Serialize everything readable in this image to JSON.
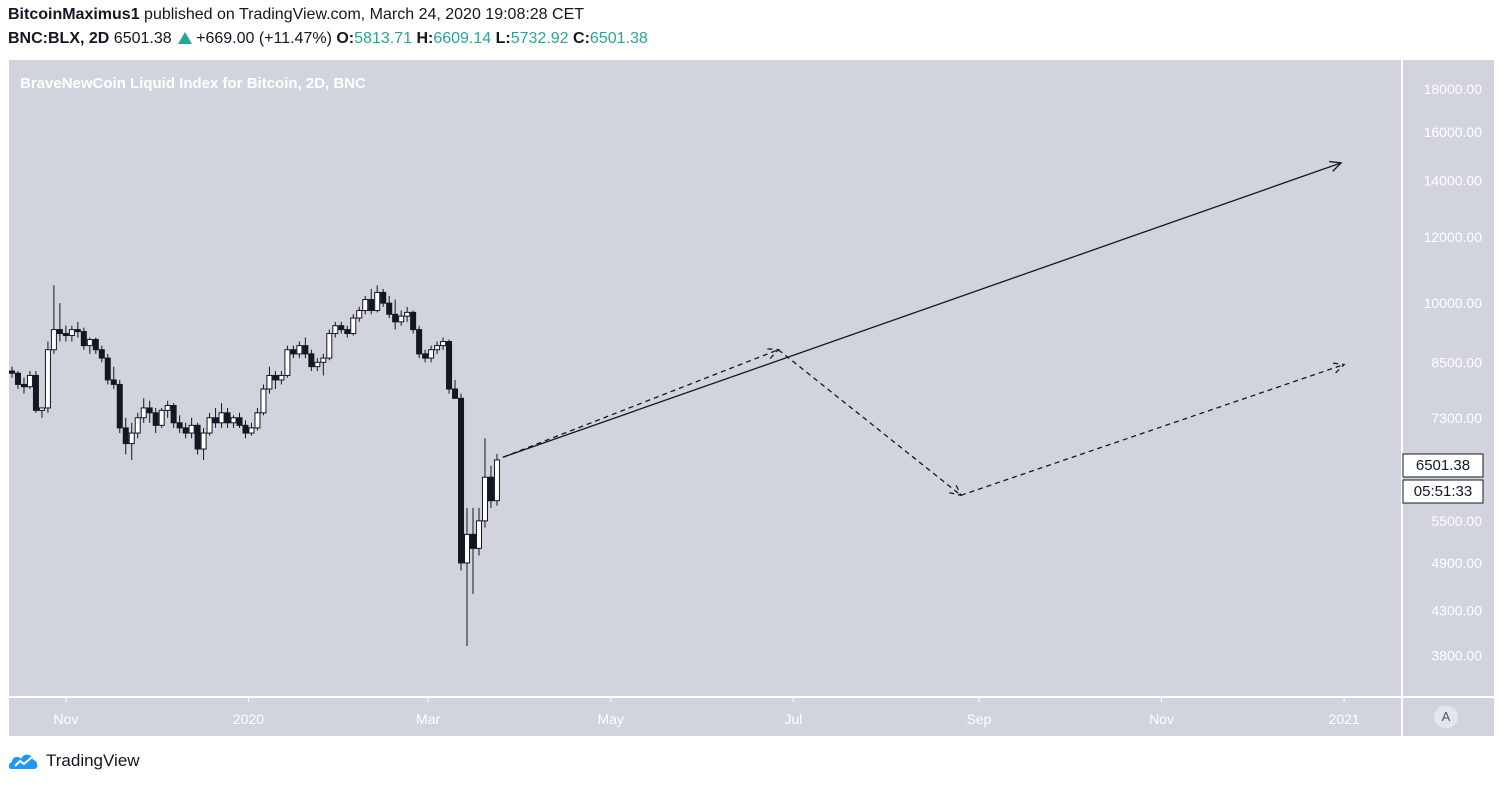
{
  "header": {
    "author": "BitcoinMaximus1",
    "published": "published on TradingView.com, March 24, 2020 19:08:28 CET",
    "symbol": "BNC:BLX, 2D",
    "last": "6501.38",
    "change": "+669.00 (+11.47%)",
    "o_label": "O:",
    "o_value": "5813.71",
    "h_label": "H:",
    "h_value": "6609.14",
    "l_label": "L:",
    "l_value": "5732.92",
    "c_label": "C:",
    "c_value": "6501.38"
  },
  "chart_data": {
    "type": "candlestick",
    "title": "BraveNewCoin Liquid Index for Bitcoin, 2D, BNC",
    "xlabel": "",
    "ylabel": "",
    "y_scale": "log",
    "ylim": [
      3400,
      19500
    ],
    "y_ticks": [
      "18000.00",
      "16000.00",
      "14000.00",
      "12000.00",
      "10000.00",
      "8500.00",
      "7300.00",
      "5500.00",
      "4900.00",
      "4300.00",
      "3800.00"
    ],
    "x_ticks": [
      "Nov",
      "2020",
      "Mar",
      "May",
      "Jul",
      "Sep",
      "Nov",
      "2021"
    ],
    "x_tick_dates": [
      "2019-11-01",
      "2020-01-01",
      "2020-03-01",
      "2020-05-01",
      "2020-07-01",
      "2020-09-01",
      "2020-11-01",
      "2021-01-01"
    ],
    "xlim": [
      "2019-10-13",
      "2021-01-20"
    ],
    "price_label": "6501.38",
    "countdown_label": "05:51:33",
    "candles": [
      {
        "date": "2019-10-14",
        "o": 8300,
        "h": 8400,
        "l": 8150,
        "c": 8250
      },
      {
        "date": "2019-10-16",
        "o": 8250,
        "h": 8300,
        "l": 7900,
        "c": 8000
      },
      {
        "date": "2019-10-18",
        "o": 8000,
        "h": 8150,
        "l": 7800,
        "c": 7950
      },
      {
        "date": "2019-10-20",
        "o": 7950,
        "h": 8300,
        "l": 7900,
        "c": 8200
      },
      {
        "date": "2019-10-22",
        "o": 8200,
        "h": 8300,
        "l": 7400,
        "c": 7450
      },
      {
        "date": "2019-10-24",
        "o": 7450,
        "h": 7500,
        "l": 7300,
        "c": 7500
      },
      {
        "date": "2019-10-26",
        "o": 7500,
        "h": 9000,
        "l": 7400,
        "c": 8800
      },
      {
        "date": "2019-10-28",
        "o": 8800,
        "h": 10500,
        "l": 8700,
        "c": 9300
      },
      {
        "date": "2019-10-30",
        "o": 9300,
        "h": 10000,
        "l": 9000,
        "c": 9200
      },
      {
        "date": "2019-11-01",
        "o": 9200,
        "h": 9400,
        "l": 9000,
        "c": 9150
      },
      {
        "date": "2019-11-03",
        "o": 9150,
        "h": 9400,
        "l": 9000,
        "c": 9300
      },
      {
        "date": "2019-11-05",
        "o": 9300,
        "h": 9500,
        "l": 9100,
        "c": 9250
      },
      {
        "date": "2019-11-07",
        "o": 9250,
        "h": 9350,
        "l": 8800,
        "c": 8900
      },
      {
        "date": "2019-11-09",
        "o": 8900,
        "h": 9100,
        "l": 8700,
        "c": 9050
      },
      {
        "date": "2019-11-11",
        "o": 9050,
        "h": 9100,
        "l": 8700,
        "c": 8800
      },
      {
        "date": "2019-11-13",
        "o": 8800,
        "h": 8900,
        "l": 8500,
        "c": 8600
      },
      {
        "date": "2019-11-15",
        "o": 8600,
        "h": 8700,
        "l": 8000,
        "c": 8100
      },
      {
        "date": "2019-11-17",
        "o": 8100,
        "h": 8400,
        "l": 7900,
        "c": 8000
      },
      {
        "date": "2019-11-19",
        "o": 8000,
        "h": 8100,
        "l": 7000,
        "c": 7100
      },
      {
        "date": "2019-11-21",
        "o": 7100,
        "h": 7300,
        "l": 6600,
        "c": 6800
      },
      {
        "date": "2019-11-23",
        "o": 6800,
        "h": 7200,
        "l": 6500,
        "c": 7000
      },
      {
        "date": "2019-11-25",
        "o": 7000,
        "h": 7400,
        "l": 6900,
        "c": 7300
      },
      {
        "date": "2019-11-27",
        "o": 7300,
        "h": 7700,
        "l": 7200,
        "c": 7500
      },
      {
        "date": "2019-11-29",
        "o": 7500,
        "h": 7650,
        "l": 7200,
        "c": 7400
      },
      {
        "date": "2019-12-01",
        "o": 7400,
        "h": 7500,
        "l": 7000,
        "c": 7150
      },
      {
        "date": "2019-12-03",
        "o": 7150,
        "h": 7500,
        "l": 7100,
        "c": 7450
      },
      {
        "date": "2019-12-05",
        "o": 7450,
        "h": 7650,
        "l": 7300,
        "c": 7550
      },
      {
        "date": "2019-12-07",
        "o": 7550,
        "h": 7600,
        "l": 7100,
        "c": 7200
      },
      {
        "date": "2019-12-09",
        "o": 7200,
        "h": 7350,
        "l": 7000,
        "c": 7100
      },
      {
        "date": "2019-12-11",
        "o": 7100,
        "h": 7200,
        "l": 6900,
        "c": 7000
      },
      {
        "date": "2019-12-13",
        "o": 7000,
        "h": 7300,
        "l": 6900,
        "c": 7150
      },
      {
        "date": "2019-12-15",
        "o": 7150,
        "h": 7200,
        "l": 6600,
        "c": 6700
      },
      {
        "date": "2019-12-17",
        "o": 6700,
        "h": 7100,
        "l": 6500,
        "c": 7000
      },
      {
        "date": "2019-12-19",
        "o": 7000,
        "h": 7400,
        "l": 6950,
        "c": 7300
      },
      {
        "date": "2019-12-21",
        "o": 7300,
        "h": 7500,
        "l": 7100,
        "c": 7200
      },
      {
        "date": "2019-12-23",
        "o": 7200,
        "h": 7600,
        "l": 7100,
        "c": 7400
      },
      {
        "date": "2019-12-25",
        "o": 7400,
        "h": 7500,
        "l": 7100,
        "c": 7200
      },
      {
        "date": "2019-12-27",
        "o": 7200,
        "h": 7350,
        "l": 7100,
        "c": 7300
      },
      {
        "date": "2019-12-29",
        "o": 7300,
        "h": 7400,
        "l": 7100,
        "c": 7150
      },
      {
        "date": "2019-12-31",
        "o": 7150,
        "h": 7250,
        "l": 6900,
        "c": 7000
      },
      {
        "date": "2020-01-02",
        "o": 7000,
        "h": 7200,
        "l": 6950,
        "c": 7100
      },
      {
        "date": "2020-01-04",
        "o": 7100,
        "h": 7500,
        "l": 7050,
        "c": 7400
      },
      {
        "date": "2020-01-06",
        "o": 7400,
        "h": 8000,
        "l": 7350,
        "c": 7900
      },
      {
        "date": "2020-01-08",
        "o": 7900,
        "h": 8400,
        "l": 7800,
        "c": 8200
      },
      {
        "date": "2020-01-10",
        "o": 8200,
        "h": 8300,
        "l": 7900,
        "c": 8100
      },
      {
        "date": "2020-01-12",
        "o": 8100,
        "h": 8300,
        "l": 8000,
        "c": 8200
      },
      {
        "date": "2020-01-14",
        "o": 8200,
        "h": 8900,
        "l": 8150,
        "c": 8800
      },
      {
        "date": "2020-01-16",
        "o": 8800,
        "h": 8900,
        "l": 8600,
        "c": 8700
      },
      {
        "date": "2020-01-18",
        "o": 8700,
        "h": 9000,
        "l": 8600,
        "c": 8900
      },
      {
        "date": "2020-01-20",
        "o": 8900,
        "h": 9100,
        "l": 8600,
        "c": 8700
      },
      {
        "date": "2020-01-22",
        "o": 8700,
        "h": 8800,
        "l": 8300,
        "c": 8400
      },
      {
        "date": "2020-01-24",
        "o": 8400,
        "h": 8600,
        "l": 8300,
        "c": 8500
      },
      {
        "date": "2020-01-26",
        "o": 8500,
        "h": 8700,
        "l": 8200,
        "c": 8600
      },
      {
        "date": "2020-01-28",
        "o": 8600,
        "h": 9300,
        "l": 8550,
        "c": 9200
      },
      {
        "date": "2020-01-30",
        "o": 9200,
        "h": 9500,
        "l": 9100,
        "c": 9400
      },
      {
        "date": "2020-02-01",
        "o": 9400,
        "h": 9500,
        "l": 9200,
        "c": 9300
      },
      {
        "date": "2020-02-03",
        "o": 9300,
        "h": 9400,
        "l": 9100,
        "c": 9200
      },
      {
        "date": "2020-02-05",
        "o": 9200,
        "h": 9700,
        "l": 9150,
        "c": 9600
      },
      {
        "date": "2020-02-07",
        "o": 9600,
        "h": 9900,
        "l": 9500,
        "c": 9800
      },
      {
        "date": "2020-02-09",
        "o": 9800,
        "h": 10200,
        "l": 9700,
        "c": 10100
      },
      {
        "date": "2020-02-11",
        "o": 10100,
        "h": 10400,
        "l": 9700,
        "c": 9800
      },
      {
        "date": "2020-02-13",
        "o": 9800,
        "h": 10500,
        "l": 9750,
        "c": 10300
      },
      {
        "date": "2020-02-15",
        "o": 10300,
        "h": 10400,
        "l": 9900,
        "c": 10000
      },
      {
        "date": "2020-02-17",
        "o": 10000,
        "h": 10200,
        "l": 9600,
        "c": 9700
      },
      {
        "date": "2020-02-19",
        "o": 9700,
        "h": 10100,
        "l": 9300,
        "c": 9500
      },
      {
        "date": "2020-02-21",
        "o": 9500,
        "h": 9800,
        "l": 9400,
        "c": 9650
      },
      {
        "date": "2020-02-23",
        "o": 9650,
        "h": 9900,
        "l": 9500,
        "c": 9750
      },
      {
        "date": "2020-02-25",
        "o": 9750,
        "h": 9800,
        "l": 9200,
        "c": 9300
      },
      {
        "date": "2020-02-27",
        "o": 9300,
        "h": 9400,
        "l": 8600,
        "c": 8700
      },
      {
        "date": "2020-02-29",
        "o": 8700,
        "h": 8800,
        "l": 8500,
        "c": 8600
      },
      {
        "date": "2020-03-02",
        "o": 8600,
        "h": 8900,
        "l": 8500,
        "c": 8800
      },
      {
        "date": "2020-03-04",
        "o": 8800,
        "h": 9000,
        "l": 8700,
        "c": 8900
      },
      {
        "date": "2020-03-06",
        "o": 8900,
        "h": 9100,
        "l": 8800,
        "c": 9000
      },
      {
        "date": "2020-03-08",
        "o": 9000,
        "h": 9050,
        "l": 7800,
        "c": 7900
      },
      {
        "date": "2020-03-10",
        "o": 7900,
        "h": 8100,
        "l": 7700,
        "c": 7700
      },
      {
        "date": "2020-03-12",
        "o": 7700,
        "h": 7800,
        "l": 4800,
        "c": 4900
      },
      {
        "date": "2020-03-14",
        "o": 4900,
        "h": 5700,
        "l": 3900,
        "c": 5300
      },
      {
        "date": "2020-03-16",
        "o": 5300,
        "h": 5700,
        "l": 4500,
        "c": 5100
      },
      {
        "date": "2020-03-18",
        "o": 5100,
        "h": 5700,
        "l": 5000,
        "c": 5500
      },
      {
        "date": "2020-03-20",
        "o": 5500,
        "h": 6900,
        "l": 5400,
        "c": 6200
      },
      {
        "date": "2020-03-22",
        "o": 6200,
        "h": 6400,
        "l": 5700,
        "c": 5813
      },
      {
        "date": "2020-03-24",
        "o": 5813.71,
        "h": 6609.14,
        "l": 5732.92,
        "c": 6501.38
      }
    ],
    "drawings": [
      {
        "style": "solid",
        "from": {
          "date": "2020-03-26",
          "price": 6550
        },
        "to": {
          "date": "2020-12-31",
          "price": 14700
        }
      },
      {
        "style": "dashed",
        "from": {
          "date": "2020-03-26",
          "price": 6550
        },
        "to": {
          "date": "2020-06-26",
          "price": 8800
        }
      },
      {
        "style": "dashed",
        "from": {
          "date": "2020-06-26",
          "price": 8800
        },
        "to": {
          "date": "2020-08-26",
          "price": 5900
        }
      },
      {
        "style": "dashed",
        "from": {
          "date": "2020-08-26",
          "price": 5900
        },
        "to": {
          "date": "2021-01-01",
          "price": 8450
        }
      }
    ]
  },
  "footer": {
    "brand": "TradingView"
  },
  "axis": {
    "auto_label": "A"
  },
  "colors": {
    "pane_bg": "#d1d4dc",
    "candle": "#131722",
    "text_up": "#26a69a",
    "axis_text": "#ffffff"
  }
}
